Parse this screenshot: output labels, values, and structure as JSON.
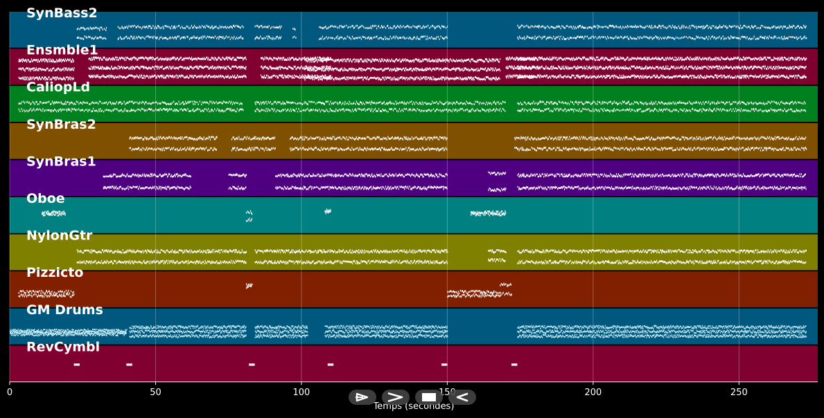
{
  "chart_data": {
    "type": "piano-roll",
    "xlabel": "Temps (secondes)",
    "xlim": [
      0,
      277
    ],
    "xticks": [
      0,
      50,
      100,
      150,
      200,
      250
    ],
    "grid": true,
    "note_color": "#ffffff",
    "drum_note_color": "#c6ecf7",
    "tracks": [
      {
        "name": "SynBass2",
        "color": "#00587f",
        "segments": [
          [
            23,
            33,
            2,
            0.45,
            0.7,
            0.22
          ],
          [
            37,
            80,
            2,
            0.4,
            0.7,
            0.22
          ],
          [
            84,
            93,
            2,
            0.4,
            0.7,
            0.22
          ],
          [
            97,
            98,
            2,
            0.45,
            0.7,
            0.22
          ],
          [
            106,
            150,
            2,
            0.4,
            0.7,
            0.22
          ],
          [
            174,
            273,
            2,
            0.4,
            0.7,
            0.22
          ]
        ]
      },
      {
        "name": "Ensmble1",
        "color": "#800030",
        "segments": [
          [
            3,
            22,
            3,
            0.3,
            0.8,
            0.13
          ],
          [
            27,
            81,
            3,
            0.25,
            0.75,
            0.13
          ],
          [
            86,
            110,
            3,
            0.25,
            0.75,
            0.13
          ],
          [
            101,
            168,
            3,
            0.3,
            0.8,
            0.13
          ],
          [
            170,
            180,
            3,
            0.25,
            0.75,
            0.13
          ],
          [
            174,
            273,
            3,
            0.25,
            0.75,
            0.13
          ]
        ]
      },
      {
        "name": "CaliopLd",
        "color": "#00801e",
        "segments": [
          [
            3,
            80,
            2,
            0.45,
            0.65,
            0.22
          ],
          [
            84,
            170,
            2,
            0.45,
            0.65,
            0.22
          ],
          [
            174,
            273,
            2,
            0.45,
            0.65,
            0.22
          ]
        ]
      },
      {
        "name": "SynBras2",
        "color": "#7f5000",
        "segments": [
          [
            41,
            71,
            2,
            0.4,
            0.7,
            0.18
          ],
          [
            76,
            91,
            2,
            0.4,
            0.7,
            0.18
          ],
          [
            96,
            150,
            2,
            0.4,
            0.7,
            0.18
          ],
          [
            173,
            273,
            2,
            0.4,
            0.7,
            0.18
          ]
        ]
      },
      {
        "name": "SynBras1",
        "color": "#4f0080",
        "segments": [
          [
            32,
            62,
            2,
            0.4,
            0.75,
            0.16
          ],
          [
            75,
            81,
            2,
            0.4,
            0.75,
            0.16
          ],
          [
            91,
            150,
            2,
            0.4,
            0.75,
            0.16
          ],
          [
            164,
            170,
            2,
            0.35,
            0.8,
            0.16
          ],
          [
            174,
            273,
            2,
            0.4,
            0.75,
            0.16
          ]
        ]
      },
      {
        "name": "Oboe",
        "color": "#008080",
        "segments": [
          [
            11,
            19,
            2,
            0.4,
            0.45,
            0.18
          ],
          [
            81,
            83,
            2,
            0.4,
            0.6,
            0.18
          ],
          [
            108,
            110,
            2,
            0.35,
            0.4,
            0.18
          ],
          [
            158,
            170,
            2,
            0.4,
            0.45,
            0.18
          ]
        ]
      },
      {
        "name": "NylonGtr",
        "color": "#7f8000",
        "segments": [
          [
            23,
            81,
            2,
            0.45,
            0.75,
            0.16
          ],
          [
            84,
            150,
            2,
            0.45,
            0.75,
            0.16
          ],
          [
            164,
            170,
            2,
            0.45,
            0.7,
            0.16
          ],
          [
            174,
            273,
            2,
            0.45,
            0.75,
            0.16
          ]
        ]
      },
      {
        "name": "Pizzicto",
        "color": "#802000",
        "segments": [
          [
            3,
            22,
            2,
            0.55,
            0.65,
            0.2
          ],
          [
            81,
            83,
            2,
            0.35,
            0.4,
            0.2
          ],
          [
            150,
            168,
            2,
            0.55,
            0.65,
            0.2
          ],
          [
            168,
            172,
            2,
            0.35,
            0.6,
            0.2
          ]
        ]
      },
      {
        "name": "GM Drums",
        "color": "#00587f",
        "drums": true,
        "segments": [
          [
            0,
            40,
            3,
            0.6,
            0.7,
            0.12
          ],
          [
            41,
            81,
            3,
            0.5,
            0.75,
            0.12
          ],
          [
            84,
            102,
            3,
            0.5,
            0.75,
            0.12
          ],
          [
            108,
            150,
            3,
            0.5,
            0.75,
            0.12
          ],
          [
            174,
            273,
            3,
            0.5,
            0.75,
            0.12
          ]
        ]
      },
      {
        "name": "RevCymbl",
        "color": "#800030",
        "notes": [
          [
            22,
            24,
            0.5
          ],
          [
            40,
            42,
            0.5
          ],
          [
            82,
            84,
            0.5
          ],
          [
            109,
            111,
            0.5
          ],
          [
            148,
            150,
            0.5
          ],
          [
            172,
            174,
            0.5
          ]
        ]
      }
    ]
  },
  "controls": {
    "buttons": [
      {
        "name": "rewind-button",
        "icon": "rewind-icon"
      },
      {
        "name": "play-button",
        "icon": "play-icon"
      },
      {
        "name": "stop-button",
        "icon": "stop-icon"
      },
      {
        "name": "back-button",
        "icon": "back-icon"
      }
    ]
  }
}
